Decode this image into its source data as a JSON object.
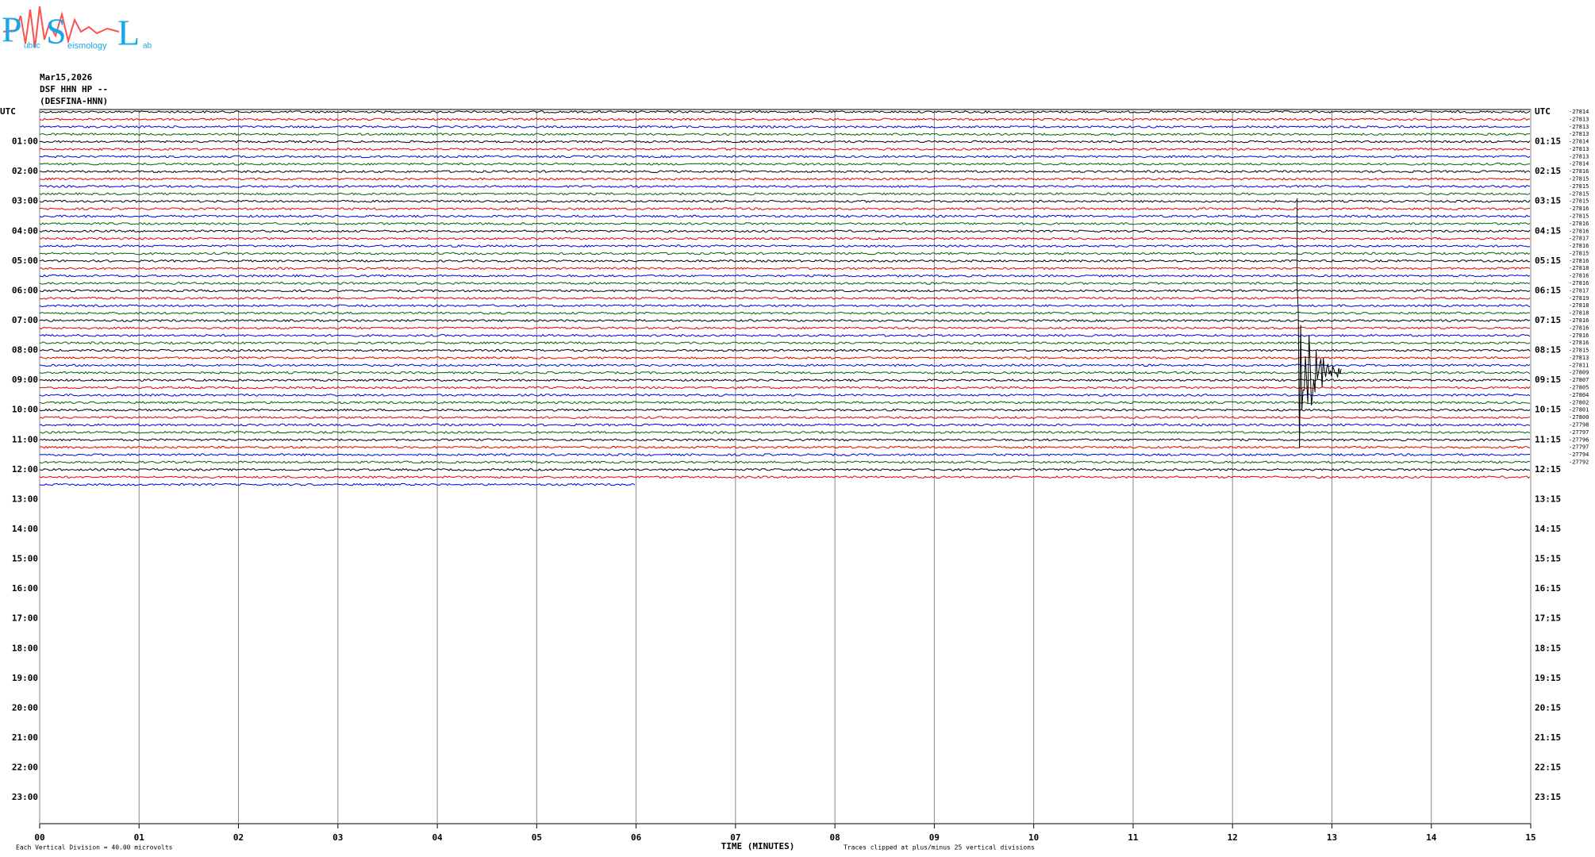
{
  "header": {
    "logo_letters": [
      "P",
      "S",
      "L"
    ],
    "logo_words": [
      "ublic",
      "eismology",
      "ab"
    ],
    "date": "Mar15,2026",
    "station": "DSF HHN HP --",
    "network": "(DESFINA-HNN)"
  },
  "left_labels": [
    "UTC",
    "01:00",
    "02:00",
    "03:00",
    "04:00",
    "05:00",
    "06:00",
    "07:00",
    "08:00",
    "09:00",
    "10:00",
    "11:00",
    "12:00",
    "13:00",
    "14:00",
    "15:00",
    "16:00",
    "17:00",
    "18:00",
    "19:00",
    "20:00",
    "21:00",
    "22:00",
    "23:00"
  ],
  "right_labels": [
    "UTC",
    "01:15",
    "02:15",
    "03:15",
    "04:15",
    "05:15",
    "06:15",
    "07:15",
    "08:15",
    "09:15",
    "10:15",
    "11:15",
    "12:15",
    "13:15",
    "14:15",
    "15:15",
    "16:15",
    "17:15",
    "18:15",
    "19:15",
    "20:15",
    "21:15",
    "22:15",
    "23:15"
  ],
  "counts": [
    "-27814",
    "-27813",
    "-27813",
    "-27813",
    "-27814",
    "-27813",
    "-27813",
    "-27814",
    "-27816",
    "-27815",
    "-27815",
    "-27815",
    "-27815",
    "-27816",
    "-27815",
    "-27816",
    "-27816",
    "-27817",
    "-27816",
    "-27815",
    "-27816",
    "-27818",
    "-27816",
    "-27816",
    "-27817",
    "-27819",
    "-27818",
    "-27818",
    "-27816",
    "-27816",
    "-27816",
    "-27816",
    "-27815",
    "-27813",
    "-27811",
    "-27809",
    "-27807",
    "-27805",
    "-27804",
    "-27802",
    "-27801",
    "-27800",
    "-27798",
    "-27797",
    "-27796",
    "-27797",
    "-27794",
    "-27792"
  ],
  "x_ticks": [
    "00",
    "01",
    "02",
    "03",
    "04",
    "05",
    "06",
    "07",
    "08",
    "09",
    "10",
    "11",
    "12",
    "13",
    "14",
    "15"
  ],
  "x_axis_title": "TIME (MINUTES)",
  "footer": {
    "scale_note": "Each Vertical Division =   40.00 microvolts",
    "clip_note": "Traces clipped at plus/minus 25 vertical divisions"
  }
}
